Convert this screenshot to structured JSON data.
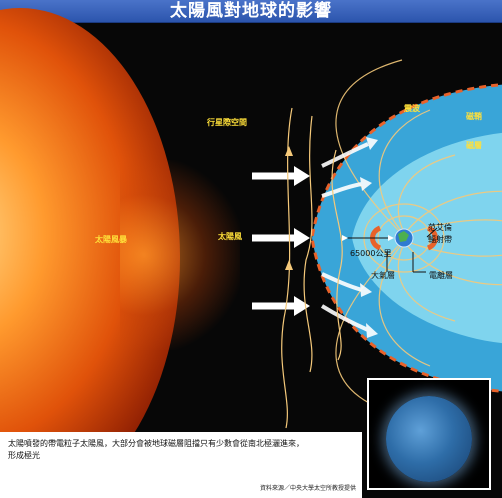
{
  "title": "太陽風對地球的影響",
  "labels": {
    "solar_storm": "太陽風暴",
    "interplanetary": "行星際空間",
    "solar_wind": "太陽風",
    "bow_shock": "震波",
    "magnetosheath": "磁鞘",
    "magnetosphere": "磁層",
    "van_allen": "范艾倫",
    "radiation_belt": "輻射帶",
    "distance": "65000公里",
    "atmosphere": "大氣層",
    "ionosphere": "電離層"
  },
  "caption": {
    "text": "太陽噴發的帶電粒子太陽風，大部分會被地球磁層阻擋只有少數會從南北極灑進來，形成極光",
    "source": "資料來源／中央大學太空所教授提供"
  },
  "colors": {
    "title_bar": "#3a63bf",
    "magnetosheath": "#39a5d8",
    "magnetosphere": "#7fd4ee",
    "bow_shock": "#e8622a",
    "field_lines": "#f5c97a",
    "label_yellow": "#ffe03a"
  }
}
